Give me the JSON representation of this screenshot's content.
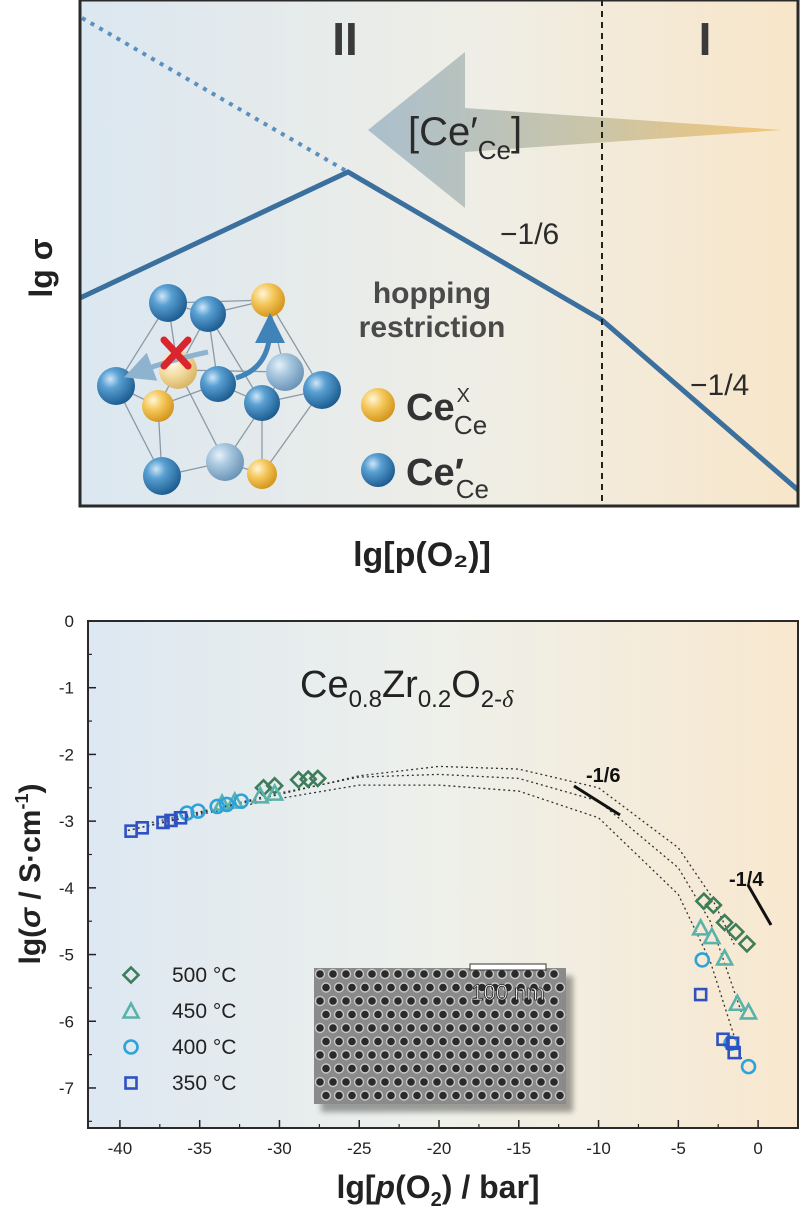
{
  "top_panel": {
    "region_left": "II",
    "region_right": "I",
    "arrow_label": "[Ce′",
    "arrow_label_sub": "Ce",
    "arrow_label_close": "]",
    "slope_mid": "−1/6",
    "slope_right": "−1/4",
    "hopping_line1": "hopping",
    "hopping_line2": "restriction",
    "legend_ce_x": "Ce",
    "legend_ce_x_sup": "X",
    "legend_ce_x_sub": "Ce",
    "legend_ce_prime": "Ce′",
    "legend_ce_prime_sub": "Ce",
    "ylabel": "lg σ",
    "xlabel": "lg[p(O₂)]",
    "colors": {
      "line": "#3a6f9e",
      "left_bg": "#dde8f1",
      "right_bg": "#f7e7cd",
      "arrow": "#a9bcc8",
      "cross": "#d9252b"
    }
  },
  "chart_data": {
    "type": "scatter",
    "title": "Ce0.8Zr0.2O2-δ",
    "xlabel": "lg[p(O2) / bar]",
    "ylabel": "lg(σ / S·cm-1)",
    "xlim": [
      -42,
      2.5
    ],
    "ylim": [
      -7.6,
      0
    ],
    "xticks": [
      -40,
      -35,
      -30,
      -25,
      -20,
      -15,
      -10,
      -5,
      0
    ],
    "yticks": [
      0,
      -1,
      -2,
      -3,
      -4,
      -5,
      -6,
      -7
    ],
    "grid": false,
    "legend_position": "bottom-left",
    "inset_scale_label": "100 nm",
    "slope_labels": [
      "-1/6",
      "-1/4"
    ],
    "series": [
      {
        "name": "500 °C",
        "marker": "diamond",
        "color": "#3e7d5a",
        "points": [
          [
            -31.0,
            -2.5
          ],
          [
            -30.3,
            -2.47
          ],
          [
            -28.8,
            -2.38
          ],
          [
            -28.2,
            -2.37
          ],
          [
            -27.6,
            -2.36
          ],
          [
            -3.4,
            -4.2
          ],
          [
            -2.8,
            -4.26
          ],
          [
            -2.1,
            -4.52
          ],
          [
            -1.4,
            -4.66
          ],
          [
            -0.7,
            -4.84
          ]
        ]
      },
      {
        "name": "450 °C",
        "marker": "triangle",
        "color": "#5ab3aa",
        "points": [
          [
            -33.6,
            -2.73
          ],
          [
            -32.8,
            -2.7
          ],
          [
            -31.2,
            -2.62
          ],
          [
            -30.3,
            -2.58
          ],
          [
            -3.6,
            -4.6
          ],
          [
            -2.9,
            -4.73
          ],
          [
            -2.1,
            -5.05
          ],
          [
            -1.3,
            -5.73
          ],
          [
            -0.6,
            -5.86
          ]
        ]
      },
      {
        "name": "400 °C",
        "marker": "circle",
        "color": "#2ea3d9",
        "points": [
          [
            -35.8,
            -2.88
          ],
          [
            -35.1,
            -2.85
          ],
          [
            -33.9,
            -2.78
          ],
          [
            -33.3,
            -2.75
          ],
          [
            -32.4,
            -2.7
          ],
          [
            -3.5,
            -5.08
          ],
          [
            -1.7,
            -6.33
          ],
          [
            -0.6,
            -6.68
          ]
        ]
      },
      {
        "name": "350 °C",
        "marker": "square",
        "color": "#2f51c2",
        "points": [
          [
            -39.3,
            -3.15
          ],
          [
            -38.6,
            -3.1
          ],
          [
            -37.3,
            -3.02
          ],
          [
            -36.8,
            -2.99
          ],
          [
            -36.2,
            -2.95
          ],
          [
            -3.6,
            -5.6
          ],
          [
            -2.2,
            -6.27
          ],
          [
            -1.6,
            -6.33
          ],
          [
            -1.5,
            -6.47
          ]
        ]
      }
    ],
    "fits": [
      {
        "x": [
          -39.5,
          -35,
          -30,
          -25,
          -20,
          -15,
          -10,
          -5,
          -3,
          -1.5
        ],
        "y": [
          -3.14,
          -2.88,
          -2.6,
          -2.32,
          -2.18,
          -2.22,
          -2.5,
          -3.4,
          -4.1,
          -4.85
        ]
      },
      {
        "x": [
          -38,
          -35,
          -30,
          -25,
          -20,
          -15,
          -10,
          -5,
          -3,
          -1
        ],
        "y": [
          -3.02,
          -2.86,
          -2.58,
          -2.34,
          -2.3,
          -2.36,
          -2.7,
          -3.7,
          -4.5,
          -5.9
        ]
      },
      {
        "x": [
          -39.5,
          -35,
          -30,
          -25,
          -20,
          -15,
          -10,
          -5,
          -3,
          -1
        ],
        "y": [
          -3.14,
          -2.9,
          -2.66,
          -2.46,
          -2.46,
          -2.55,
          -2.95,
          -4.1,
          -5.1,
          -6.6
        ]
      }
    ]
  }
}
